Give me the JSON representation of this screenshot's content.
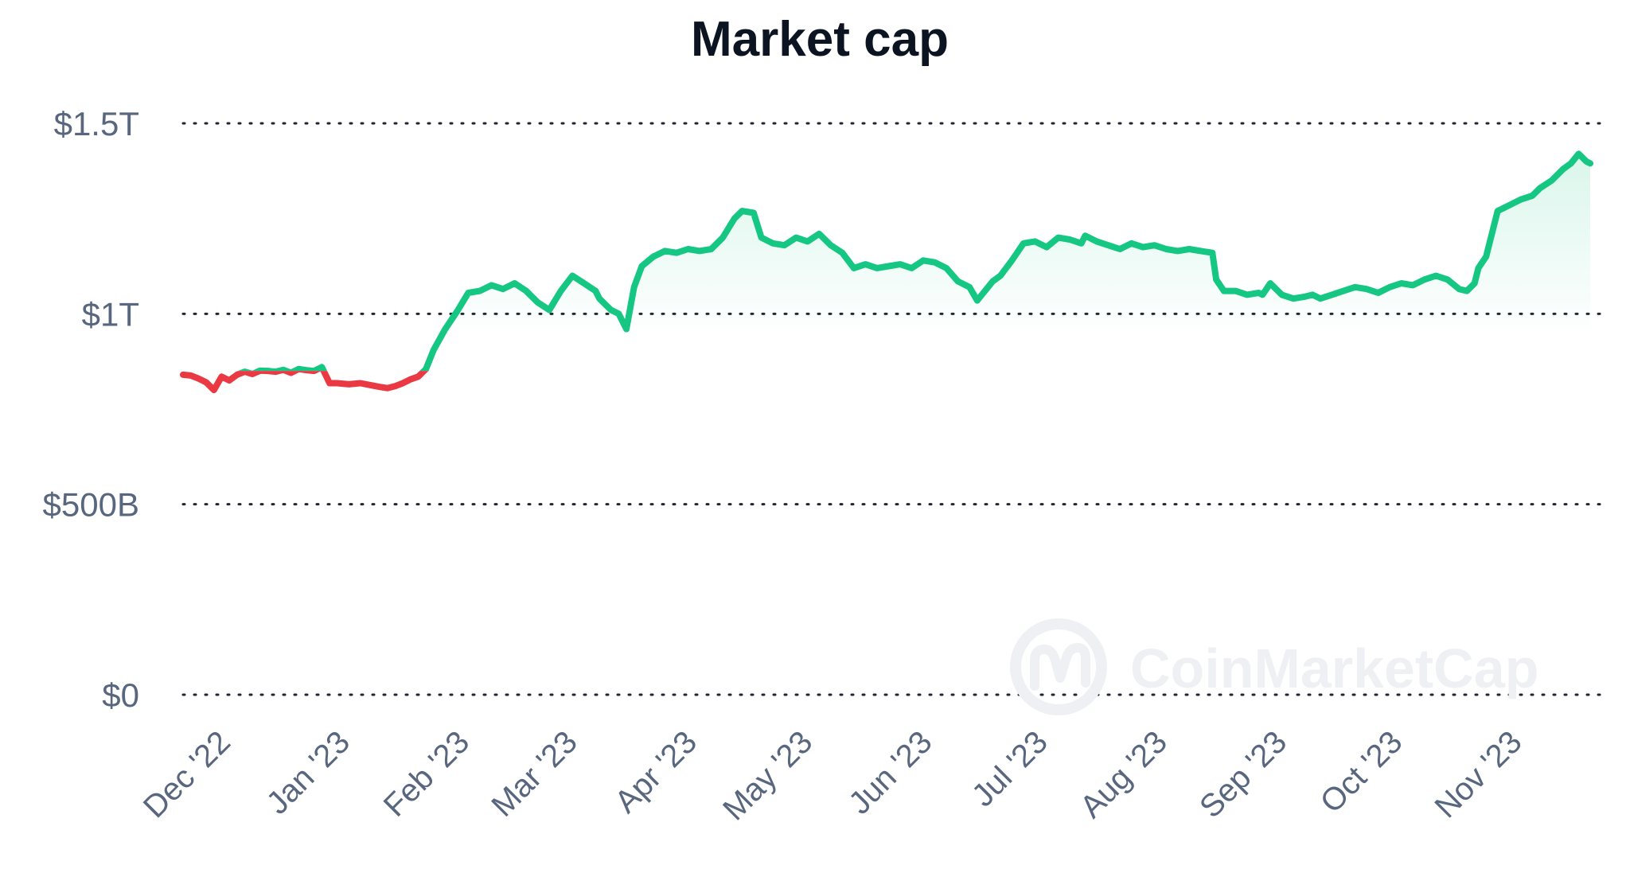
{
  "chart_data": {
    "type": "line",
    "title": "Market cap",
    "xlabel": "",
    "ylabel": "",
    "ylim": [
      0,
      1500
    ],
    "y_unit": "billion USD",
    "grid": true,
    "legend": "none",
    "y_ticks": [
      {
        "value": 0,
        "label": "$0"
      },
      {
        "value": 500,
        "label": "$500B"
      },
      {
        "value": 1000,
        "label": "$1T"
      },
      {
        "value": 1500,
        "label": "$1.5T"
      }
    ],
    "x_range": [
      "2022-11-22",
      "2023-11-22"
    ],
    "x_ticks": [
      {
        "date": "2022-12-01",
        "label": "Dec '22"
      },
      {
        "date": "2023-01-01",
        "label": "Jan '23"
      },
      {
        "date": "2023-02-01",
        "label": "Feb '23"
      },
      {
        "date": "2023-03-01",
        "label": "Mar '23"
      },
      {
        "date": "2023-04-01",
        "label": "Apr '23"
      },
      {
        "date": "2023-05-01",
        "label": "May '23"
      },
      {
        "date": "2023-06-01",
        "label": "Jun '23"
      },
      {
        "date": "2023-07-01",
        "label": "Jul '23"
      },
      {
        "date": "2023-08-01",
        "label": "Aug '23"
      },
      {
        "date": "2023-09-01",
        "label": "Sep '23"
      },
      {
        "date": "2023-10-01",
        "label": "Oct '23"
      },
      {
        "date": "2023-11-01",
        "label": "Nov '23"
      }
    ],
    "baseline_value": 850,
    "colors": {
      "above": "#16c784",
      "below": "#ea3943",
      "area": "#16c784",
      "grid": "#222531",
      "title": "#0d1421",
      "tick": "#58667e"
    },
    "series": [
      {
        "x": [
          "2022-11-22",
          "2022-11-24",
          "2022-11-26",
          "2022-11-28",
          "2022-11-30",
          "2022-12-02",
          "2022-12-04",
          "2022-12-06",
          "2022-12-08",
          "2022-12-10",
          "2022-12-12",
          "2022-12-14",
          "2022-12-16",
          "2022-12-18",
          "2022-12-20",
          "2022-12-22",
          "2022-12-24",
          "2022-12-26",
          "2022-12-28",
          "2022-12-30",
          "2023-01-01",
          "2023-01-04",
          "2023-01-07",
          "2023-01-10",
          "2023-01-12",
          "2023-01-14",
          "2023-01-16",
          "2023-01-18",
          "2023-01-20",
          "2023-01-22",
          "2023-01-24",
          "2023-01-26",
          "2023-01-29",
          "2023-02-01",
          "2023-02-04",
          "2023-02-07",
          "2023-02-10",
          "2023-02-13",
          "2023-02-16",
          "2023-02-19",
          "2023-02-22",
          "2023-02-25",
          "2023-02-28",
          "2023-03-03",
          "2023-03-06",
          "2023-03-09",
          "2023-03-10",
          "2023-03-12",
          "2023-03-13",
          "2023-03-15",
          "2023-03-17",
          "2023-03-19",
          "2023-03-21",
          "2023-03-24",
          "2023-03-27",
          "2023-03-30",
          "2023-04-02",
          "2023-04-05",
          "2023-04-08",
          "2023-04-11",
          "2023-04-14",
          "2023-04-16",
          "2023-04-19",
          "2023-04-21",
          "2023-04-24",
          "2023-04-27",
          "2023-04-30",
          "2023-05-03",
          "2023-05-06",
          "2023-05-09",
          "2023-05-12",
          "2023-05-15",
          "2023-05-18",
          "2023-05-21",
          "2023-05-24",
          "2023-05-27",
          "2023-05-30",
          "2023-06-02",
          "2023-06-05",
          "2023-06-08",
          "2023-06-11",
          "2023-06-14",
          "2023-06-16",
          "2023-06-18",
          "2023-06-20",
          "2023-06-22",
          "2023-06-25",
          "2023-06-28",
          "2023-07-01",
          "2023-07-04",
          "2023-07-07",
          "2023-07-10",
          "2023-07-13",
          "2023-07-14",
          "2023-07-17",
          "2023-07-20",
          "2023-07-23",
          "2023-07-26",
          "2023-07-29",
          "2023-08-01",
          "2023-08-04",
          "2023-08-07",
          "2023-08-10",
          "2023-08-13",
          "2023-08-16",
          "2023-08-17",
          "2023-08-19",
          "2023-08-22",
          "2023-08-25",
          "2023-08-28",
          "2023-08-29",
          "2023-08-31",
          "2023-09-03",
          "2023-09-06",
          "2023-09-09",
          "2023-09-11",
          "2023-09-13",
          "2023-09-16",
          "2023-09-19",
          "2023-09-22",
          "2023-09-25",
          "2023-09-28",
          "2023-10-01",
          "2023-10-04",
          "2023-10-07",
          "2023-10-10",
          "2023-10-13",
          "2023-10-16",
          "2023-10-19",
          "2023-10-21",
          "2023-10-23",
          "2023-10-24",
          "2023-10-26",
          "2023-10-29",
          "2023-11-01",
          "2023-11-04",
          "2023-11-07",
          "2023-11-09",
          "2023-11-12",
          "2023-11-15",
          "2023-11-17",
          "2023-11-19",
          "2023-11-20",
          "2023-11-21",
          "2023-11-22"
        ],
        "y": [
          840,
          838,
          830,
          820,
          800,
          835,
          825,
          840,
          848,
          842,
          851,
          850,
          848,
          853,
          845,
          855,
          852,
          850,
          860,
          818,
          818,
          815,
          818,
          812,
          808,
          805,
          810,
          818,
          828,
          835,
          855,
          905,
          960,
          1005,
          1055,
          1060,
          1075,
          1065,
          1080,
          1060,
          1030,
          1010,
          1060,
          1100,
          1080,
          1060,
          1040,
          1020,
          1010,
          1000,
          960,
          1070,
          1125,
          1150,
          1165,
          1160,
          1170,
          1165,
          1170,
          1200,
          1250,
          1270,
          1265,
          1200,
          1185,
          1180,
          1200,
          1190,
          1210,
          1180,
          1160,
          1120,
          1130,
          1120,
          1125,
          1130,
          1120,
          1140,
          1135,
          1120,
          1085,
          1070,
          1035,
          1060,
          1085,
          1100,
          1140,
          1185,
          1190,
          1175,
          1200,
          1195,
          1185,
          1205,
          1190,
          1180,
          1170,
          1185,
          1175,
          1180,
          1170,
          1165,
          1170,
          1165,
          1160,
          1090,
          1060,
          1060,
          1050,
          1055,
          1050,
          1080,
          1050,
          1040,
          1045,
          1050,
          1040,
          1050,
          1060,
          1070,
          1065,
          1055,
          1070,
          1080,
          1075,
          1090,
          1100,
          1090,
          1065,
          1060,
          1080,
          1120,
          1150,
          1270,
          1285,
          1300,
          1310,
          1330,
          1350,
          1380,
          1395,
          1420,
          1410,
          1400,
          1395
        ]
      }
    ],
    "watermark": "CoinMarketCap"
  }
}
